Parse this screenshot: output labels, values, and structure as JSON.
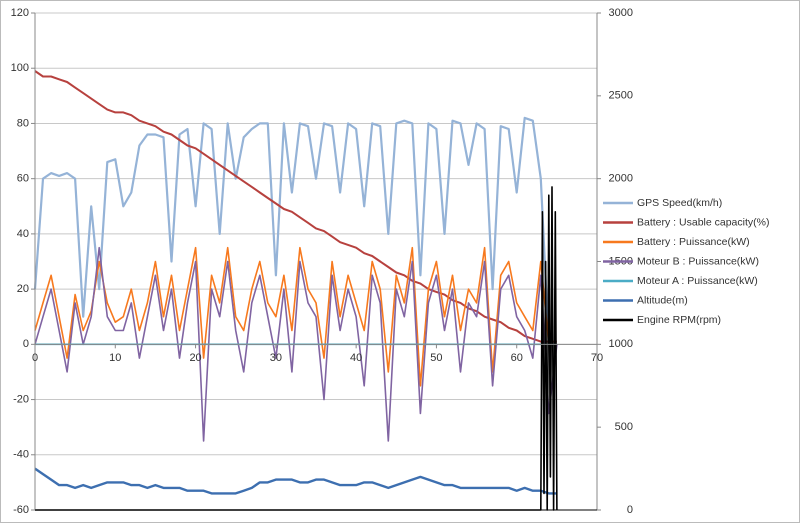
{
  "chart_data": {
    "type": "line",
    "x": [
      0,
      1,
      2,
      3,
      4,
      5,
      6,
      7,
      8,
      9,
      10,
      11,
      12,
      13,
      14,
      15,
      16,
      17,
      18,
      19,
      20,
      21,
      22,
      23,
      24,
      25,
      26,
      27,
      28,
      29,
      30,
      31,
      32,
      33,
      34,
      35,
      36,
      37,
      38,
      39,
      40,
      41,
      42,
      43,
      44,
      45,
      46,
      47,
      48,
      49,
      50,
      51,
      52,
      53,
      54,
      55,
      56,
      57,
      58,
      59,
      60,
      61,
      62,
      63,
      64,
      65
    ],
    "xlim": [
      0,
      70
    ],
    "xticks": [
      0,
      10,
      20,
      30,
      40,
      50,
      60,
      70
    ],
    "ylim": [
      -60,
      120
    ],
    "yticks": [
      -60,
      -40,
      -20,
      0,
      20,
      40,
      60,
      80,
      100,
      120
    ],
    "y2lim": [
      0,
      3000
    ],
    "y2ticks": [
      0,
      500,
      1000,
      1500,
      2000,
      2500,
      3000
    ],
    "grid": true,
    "legend": "right",
    "series": [
      {
        "name": "GPS Speed(km/h)",
        "color": "#95b3d7",
        "values": [
          20,
          60,
          62,
          61,
          62,
          60,
          10,
          50,
          20,
          66,
          67,
          50,
          55,
          72,
          76,
          76,
          75,
          30,
          76,
          78,
          50,
          80,
          78,
          40,
          80,
          60,
          75,
          78,
          80,
          80,
          25,
          80,
          55,
          80,
          79,
          60,
          80,
          79,
          55,
          80,
          78,
          50,
          80,
          79,
          40,
          80,
          81,
          80,
          25,
          80,
          78,
          40,
          81,
          80,
          65,
          80,
          78,
          20,
          79,
          78,
          55,
          82,
          81,
          60,
          0,
          0
        ]
      },
      {
        "name": "Battery : Usable capacity(%)",
        "color": "#b7413e",
        "values": [
          99,
          97,
          97,
          96,
          95,
          93,
          91,
          89,
          87,
          85,
          84,
          84,
          83,
          81,
          80,
          79,
          77,
          76,
          74,
          72,
          71,
          69,
          67,
          65,
          63,
          61,
          59,
          57,
          55,
          53,
          51,
          49,
          48,
          46,
          44,
          42,
          41,
          39,
          37,
          36,
          35,
          33,
          32,
          30,
          28,
          26,
          25,
          23,
          22,
          20,
          19,
          18,
          16,
          15,
          13,
          12,
          10,
          9,
          8,
          6,
          5,
          3,
          2,
          1,
          1,
          1
        ]
      },
      {
        "name": "Battery : Puissance(kW)",
        "color": "#f7791e",
        "values": [
          5,
          15,
          25,
          10,
          -5,
          18,
          5,
          12,
          30,
          15,
          8,
          10,
          20,
          5,
          15,
          30,
          10,
          25,
          5,
          20,
          35,
          -5,
          25,
          15,
          35,
          10,
          5,
          20,
          30,
          15,
          10,
          25,
          5,
          35,
          20,
          15,
          -5,
          30,
          10,
          25,
          15,
          5,
          30,
          20,
          -10,
          25,
          15,
          35,
          -15,
          20,
          30,
          10,
          25,
          5,
          20,
          15,
          35,
          -10,
          25,
          30,
          15,
          10,
          5,
          30,
          0,
          0
        ]
      },
      {
        "name": "Moteur B : Puissance(kW)",
        "color": "#8064a2",
        "values": [
          0,
          10,
          20,
          5,
          -10,
          15,
          0,
          10,
          35,
          10,
          5,
          5,
          15,
          -5,
          10,
          25,
          5,
          20,
          -5,
          15,
          30,
          -35,
          20,
          10,
          30,
          5,
          -10,
          15,
          25,
          10,
          -5,
          20,
          -10,
          30,
          15,
          10,
          -20,
          25,
          5,
          20,
          10,
          -15,
          25,
          15,
          -35,
          20,
          10,
          30,
          -25,
          15,
          25,
          5,
          20,
          -10,
          15,
          10,
          30,
          -15,
          20,
          25,
          10,
          5,
          -5,
          25,
          -25,
          0
        ]
      },
      {
        "name": "Moteur A : Puissance(kW)",
        "color": "#4bacc6",
        "x": [
          0,
          65
        ],
        "values": [
          0,
          0
        ]
      },
      {
        "name": "Altitude(m)",
        "color": "#3d6fb0",
        "values": [
          -45,
          -47,
          -49,
          -51,
          -51,
          -52,
          -51,
          -52,
          -51,
          -50,
          -50,
          -50,
          -51,
          -51,
          -52,
          -51,
          -52,
          -52,
          -52,
          -53,
          -53,
          -53,
          -54,
          -54,
          -54,
          -54,
          -53,
          -52,
          -50,
          -50,
          -49,
          -49,
          -49,
          -50,
          -50,
          -49,
          -49,
          -50,
          -51,
          -51,
          -51,
          -50,
          -50,
          -51,
          -52,
          -51,
          -50,
          -49,
          -48,
          -49,
          -50,
          -51,
          -51,
          -52,
          -52,
          -52,
          -52,
          -52,
          -52,
          -52,
          -53,
          -52,
          -53,
          -53,
          -54,
          -54
        ]
      },
      {
        "name": "Engine RPM(rpm)",
        "color": "#000000",
        "axis": "y2",
        "x": [
          0,
          63,
          63.2,
          63.4,
          63.6,
          63.8,
          64,
          64.2,
          64.4,
          64.6,
          64.8,
          65
        ],
        "values": [
          0,
          0,
          1800,
          100,
          1500,
          0,
          1900,
          200,
          1950,
          0,
          1800,
          0
        ]
      }
    ]
  }
}
